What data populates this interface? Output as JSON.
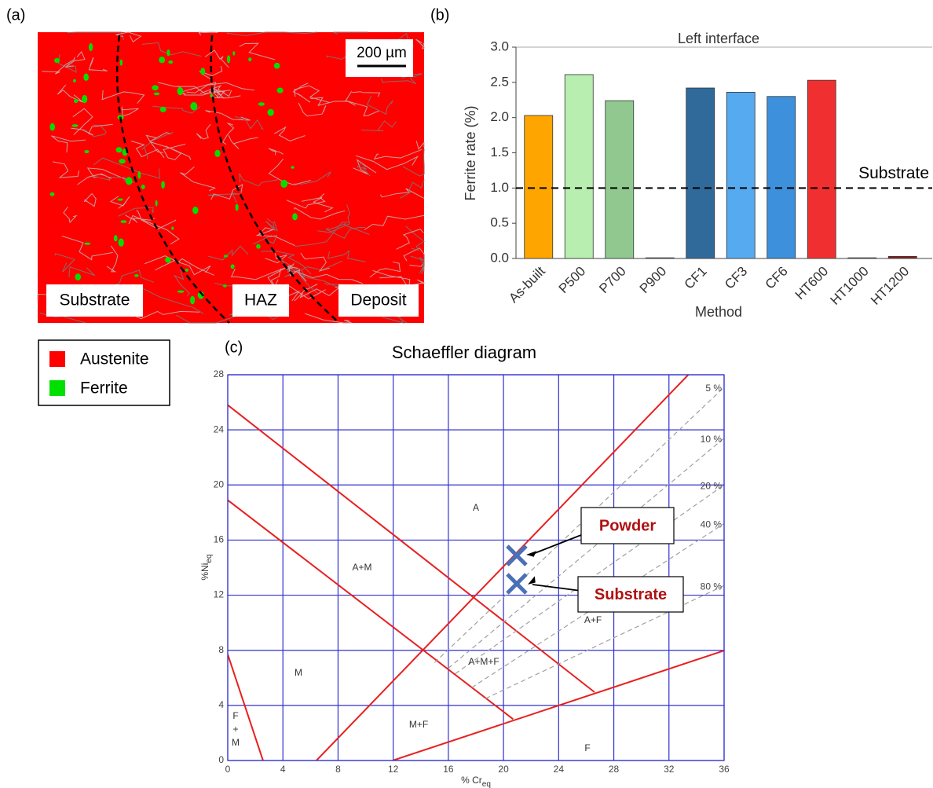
{
  "panel_a": {
    "label": "(a)",
    "scale_bar": "200 µm",
    "regions": [
      "Substrate",
      "HAZ",
      "Deposit"
    ],
    "legend": [
      {
        "name": "Austenite",
        "color": "#ff0000"
      },
      {
        "name": "Ferrite",
        "color": "#00e000"
      }
    ]
  },
  "chart_data": [
    {
      "type": "bar",
      "panel_label": "(b)",
      "title": "Left interface",
      "xlabel": "Method",
      "ylabel": "Ferrite rate (%)",
      "categories": [
        "As-built",
        "P500",
        "P700",
        "P900",
        "CF1",
        "CF3",
        "CF6",
        "HT600",
        "HT1000",
        "HT1200"
      ],
      "values": [
        2.03,
        2.61,
        2.24,
        0.01,
        2.42,
        2.36,
        2.3,
        2.53,
        0.01,
        0.03
      ],
      "colors": [
        "#ffa500",
        "#b8eeb0",
        "#90c890",
        "#8b4513",
        "#2f6a9a",
        "#55aaf0",
        "#3d90dc",
        "#f03030",
        "#a0522d",
        "#8b1a1a"
      ],
      "ylim": [
        0,
        3
      ],
      "yticks": [
        {
          "value": 0,
          "label": "0.0"
        },
        0.5,
        {
          "value": 1,
          "label": "1.0"
        },
        1.5,
        {
          "value": 2,
          "label": "2.0"
        },
        2.5,
        {
          "value": 3,
          "label": "3.0"
        }
      ],
      "reference_line": {
        "value": 1,
        "label": "Substrate"
      }
    },
    {
      "type": "line",
      "panel_label": "(c)",
      "title": "Schaeffler diagram",
      "xlabel": "% Cr",
      "xlabel_sub": "eq",
      "ylabel": "%Ni",
      "ylabel_sub": "eq",
      "xlim": [
        0,
        36
      ],
      "xticks": [
        0,
        4,
        8,
        12,
        16,
        20,
        24,
        28,
        32,
        36
      ],
      "ylim": [
        0,
        28
      ],
      "yticks": [
        0,
        4,
        8,
        12,
        16,
        20,
        24,
        28
      ],
      "grid": true,
      "series": [
        {
          "color": "#e82020",
          "x": [
            0,
            26.6
          ],
          "values": [
            25.8,
            4.96
          ]
        },
        {
          "color": "#e82020",
          "x": [
            0,
            20.7
          ],
          "values": [
            18.9,
            3.0
          ]
        },
        {
          "color": "#e82020",
          "x": [
            6.43,
            33.4
          ],
          "values": [
            0,
            28
          ]
        },
        {
          "color": "#e82020",
          "x": [
            11.96,
            36
          ],
          "values": [
            0,
            7.98
          ]
        },
        {
          "color": "#e82020",
          "x": [
            0,
            2.56
          ],
          "values": [
            7.7,
            0
          ]
        },
        {
          "name": "5 %",
          "color": "#a0a0a0",
          "dashed": true,
          "x": [
            15,
            36
          ],
          "values": [
            7.1,
            27.1
          ]
        },
        {
          "name": "10 %",
          "color": "#a0a0a0",
          "dashed": true,
          "x": [
            16,
            36
          ],
          "values": [
            6.7,
            23.4
          ]
        },
        {
          "name": "20 %",
          "color": "#a0a0a0",
          "dashed": true,
          "x": [
            16.5,
            36
          ],
          "values": [
            6.3,
            20.0
          ]
        },
        {
          "name": "40 %",
          "color": "#a0a0a0",
          "dashed": true,
          "x": [
            17.7,
            36
          ],
          "values": [
            5.3,
            17.2
          ]
        },
        {
          "name": "80 %",
          "color": "#a0a0a0",
          "dashed": true,
          "x": [
            18.7,
            36
          ],
          "values": [
            4.5,
            12.7
          ]
        }
      ],
      "regions": [
        "A",
        "A+M",
        "M",
        "A+M+F",
        "A+F",
        "M+F",
        "F",
        "F\n+\nM"
      ],
      "points": [
        {
          "name": "Powder",
          "x": 20.96,
          "y": 14.88,
          "color": "#4a70b8"
        },
        {
          "name": "Substrate",
          "x": 20.96,
          "y": 12.83,
          "color": "#4a70b8"
        }
      ]
    }
  ]
}
